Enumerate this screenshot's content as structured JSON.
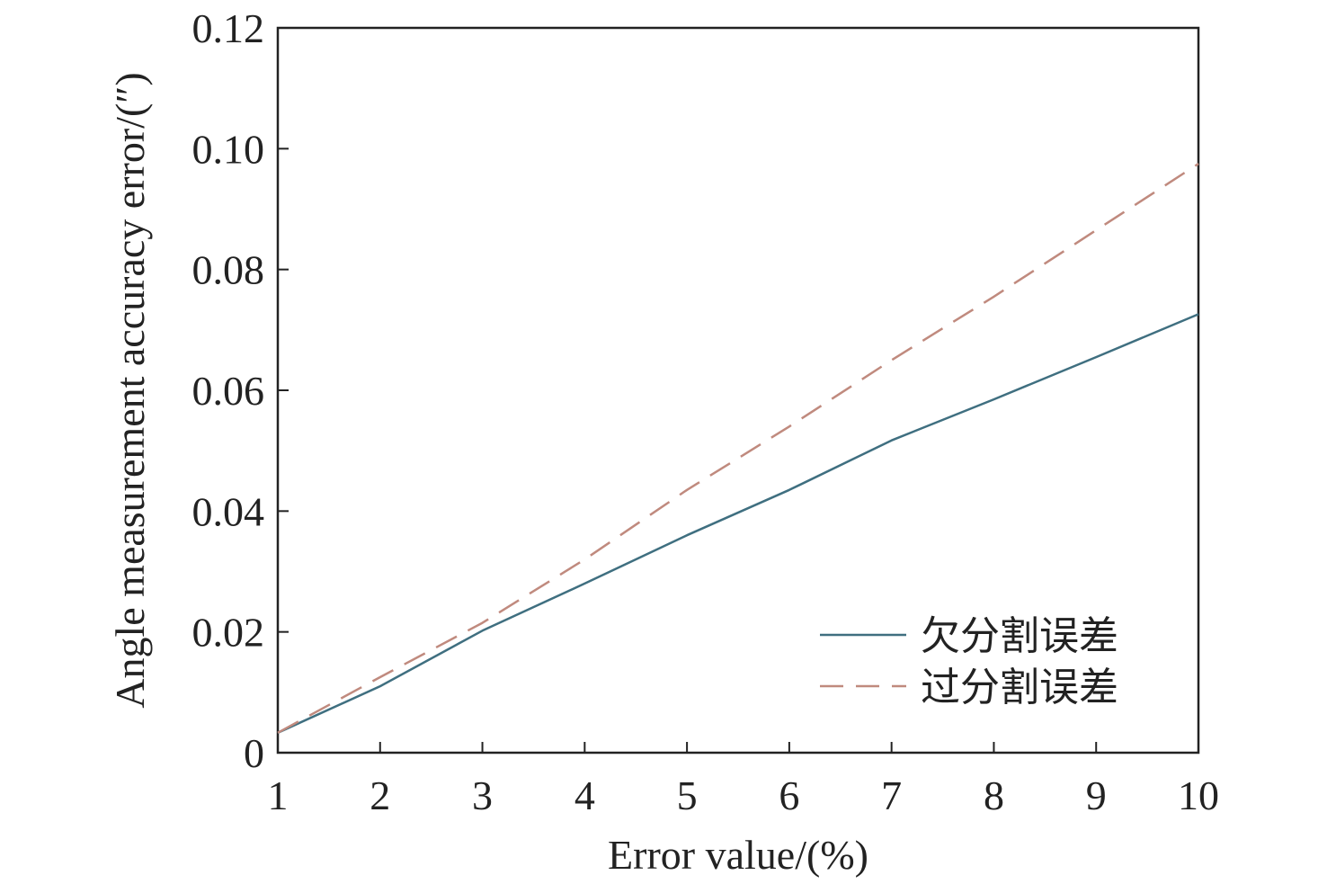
{
  "chart_data": {
    "type": "line",
    "xlabel": "Error value/(%)",
    "ylabel": "Angle measurement accuracy error/(″)",
    "xlim": [
      1,
      10
    ],
    "ylim": [
      0,
      0.12
    ],
    "x_ticks": [
      "1",
      "2",
      "3",
      "4",
      "5",
      "6",
      "7",
      "8",
      "9",
      "10"
    ],
    "y_ticks": [
      "0",
      "0.02",
      "0.04",
      "0.06",
      "0.08",
      "0.10",
      "0.12"
    ],
    "x_tick_values": [
      1,
      2,
      3,
      4,
      5,
      6,
      7,
      8,
      9,
      10
    ],
    "y_tick_values": [
      0,
      0.02,
      0.04,
      0.06,
      0.08,
      0.1,
      0.12
    ],
    "grid": false,
    "legend_position": "bottom-right",
    "series": [
      {
        "name": "欠分割误差",
        "style": "solid",
        "color": "#3f6f80",
        "x": [
          1,
          2,
          3,
          4,
          5,
          6,
          7,
          8,
          9,
          10
        ],
        "y": [
          0.0033,
          0.011,
          0.0202,
          0.028,
          0.036,
          0.0435,
          0.0517,
          0.0585,
          0.0655,
          0.0726
        ]
      },
      {
        "name": "过分割误差",
        "style": "dashed",
        "color": "#c08a7e",
        "x": [
          1,
          2,
          3,
          4,
          5,
          6,
          7,
          8,
          9,
          10
        ],
        "y": [
          0.0033,
          0.0125,
          0.0215,
          0.032,
          0.0435,
          0.054,
          0.065,
          0.0755,
          0.0865,
          0.0975
        ]
      }
    ]
  }
}
